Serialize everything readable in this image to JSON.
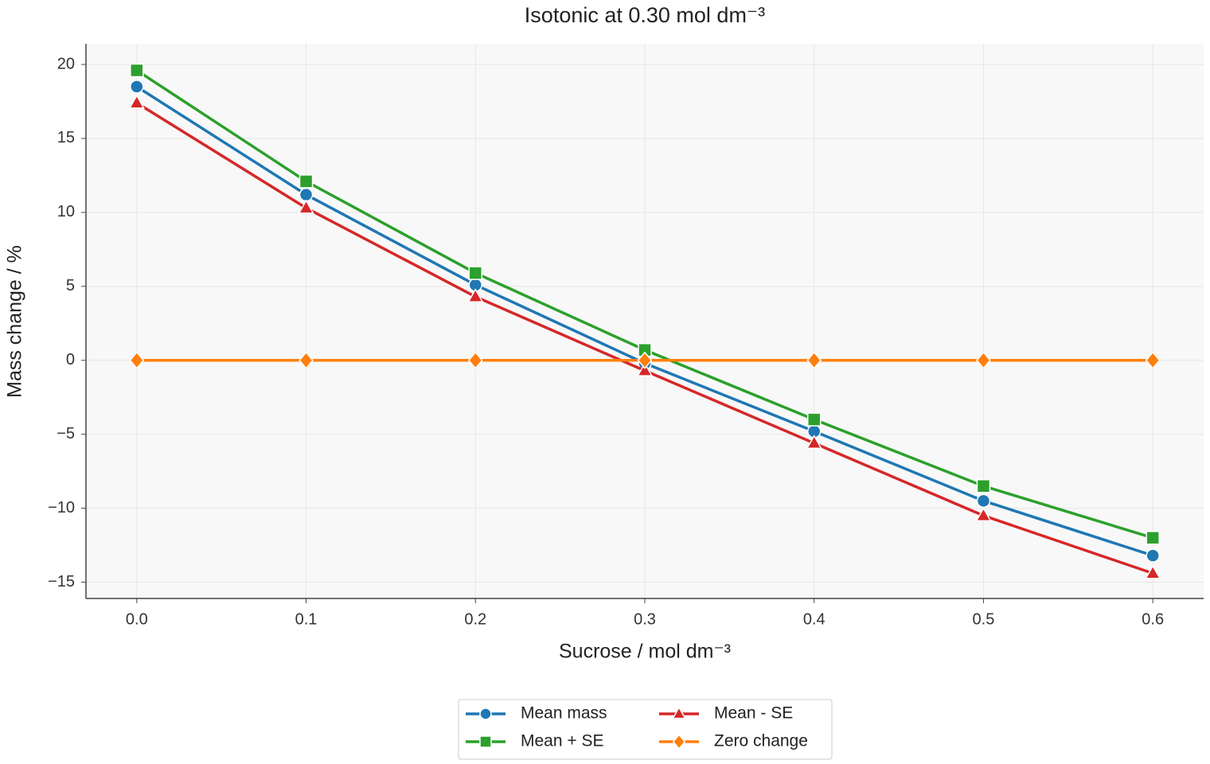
{
  "chart_data": {
    "type": "line",
    "title": "Isotonic at 0.30 mol dm⁻³",
    "x_label": "Sucrose / mol dm⁻³",
    "y_label": "Mass change / %",
    "x": [
      0.0,
      0.1,
      0.2,
      0.3,
      0.4,
      0.5,
      0.6
    ],
    "series": [
      {
        "name": "Mean mass",
        "color": "#1f77b4",
        "marker": "circle",
        "values": [
          18.5,
          11.2,
          5.1,
          -0.2,
          -4.8,
          -9.5,
          -13.2
        ]
      },
      {
        "name": "Mean + SE",
        "color": "#2ca02c",
        "marker": "square",
        "values": [
          19.6,
          12.1,
          5.9,
          0.7,
          -4.0,
          -8.5,
          -12.0
        ]
      },
      {
        "name": "Mean - SE",
        "color": "#d62728",
        "marker": "triangle",
        "values": [
          17.4,
          10.3,
          4.3,
          -0.7,
          -5.6,
          -10.5,
          -14.4
        ]
      },
      {
        "name": "Zero change",
        "color": "#ff7f0e",
        "marker": "diamond",
        "values": [
          0,
          0,
          0,
          0,
          0,
          0,
          0
        ]
      }
    ],
    "xlim": [
      -0.03,
      0.63
    ],
    "ylim": [
      -16.1,
      21.4
    ],
    "xticks": [
      {
        "value": 0.0,
        "label": "0.0"
      },
      0.1,
      0.2,
      0.3,
      0.4,
      0.5,
      0.6
    ],
    "yticks": [
      {
        "value": -15,
        "label": "−15"
      },
      {
        "value": -10,
        "label": "−10"
      },
      {
        "value": -5,
        "label": "−5"
      },
      0,
      5,
      10,
      15,
      20
    ],
    "grid": true,
    "legend": "bottom"
  }
}
